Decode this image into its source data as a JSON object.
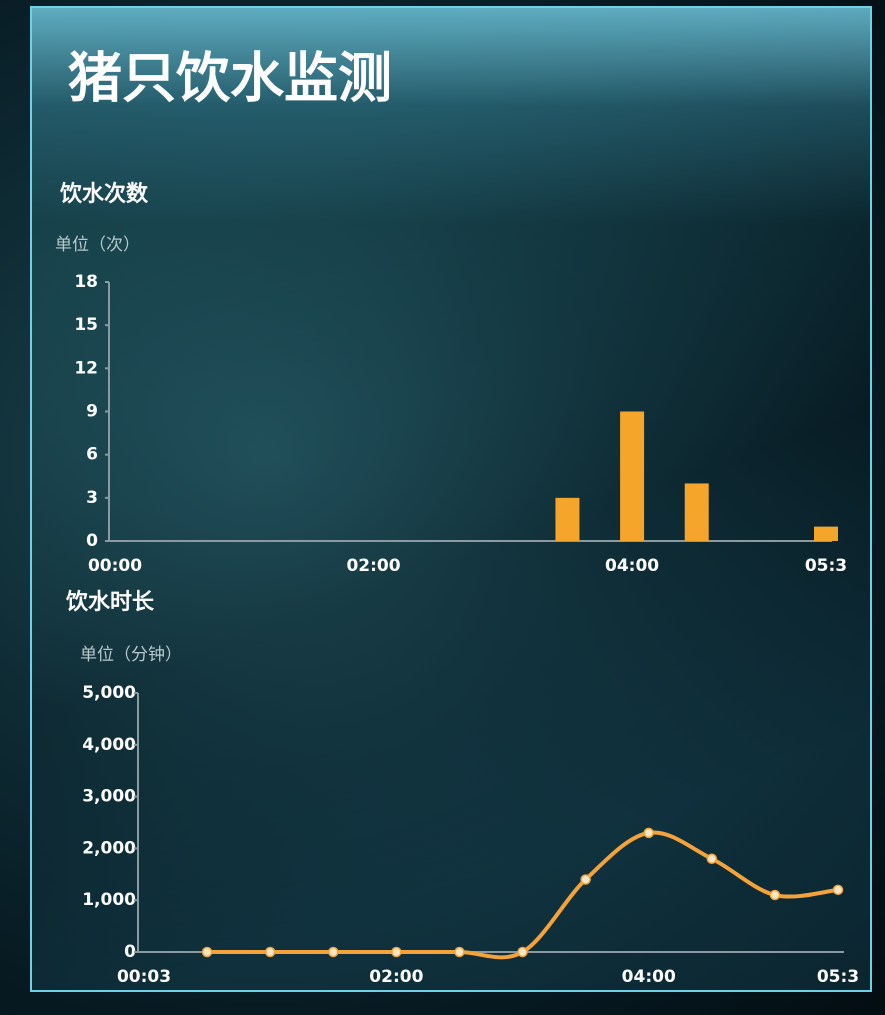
{
  "title": "猪只饮水监测",
  "chart_data": [
    {
      "type": "bar",
      "title": "饮水次数",
      "y_label": "单位（次）",
      "categories": [
        "00:00",
        null,
        null,
        null,
        "02:00",
        null,
        null,
        null,
        "04:00",
        null,
        null,
        "05:3"
      ],
      "values": [
        0,
        0,
        0,
        0,
        0,
        0,
        0,
        3,
        9,
        4,
        0,
        1
      ],
      "color": "#f5a52a",
      "ylim": [
        0,
        18
      ],
      "yticks": [
        0,
        3,
        6,
        9,
        12,
        15,
        18
      ]
    },
    {
      "type": "line",
      "title": "饮水时长",
      "y_label": "单位（分钟）",
      "categories": [
        "00:03",
        null,
        null,
        null,
        "02:00",
        null,
        null,
        null,
        "04:00",
        null,
        null,
        "05:3"
      ],
      "values": [
        null,
        0,
        0,
        0,
        0,
        0,
        0,
        1400,
        2300,
        1800,
        1100,
        1200
      ],
      "color": "#f3a33a",
      "ylim": [
        0,
        5000
      ],
      "yticks": [
        0,
        {
          "value": 1000,
          "label": "1,000"
        },
        {
          "value": 2000,
          "label": "2,000"
        },
        {
          "value": 3000,
          "label": "3,000"
        },
        {
          "value": 4000,
          "label": "4,000"
        },
        {
          "value": 5000,
          "label": "5,000"
        }
      ]
    }
  ]
}
